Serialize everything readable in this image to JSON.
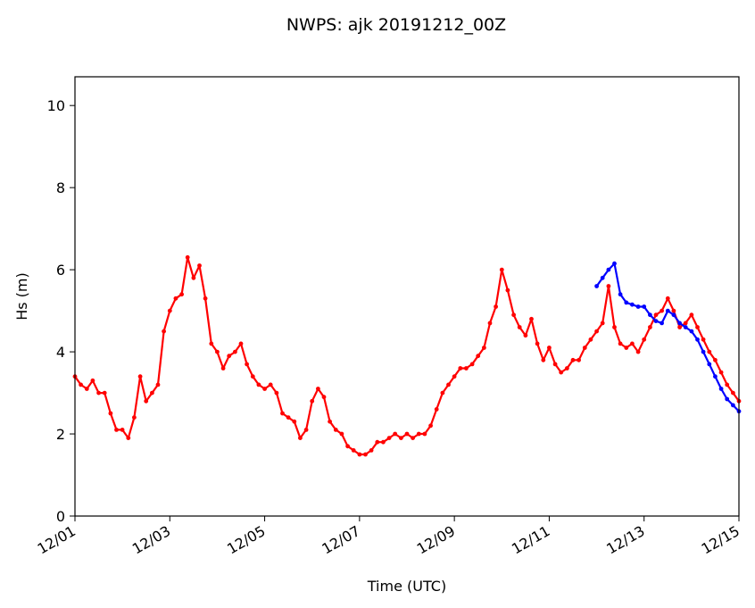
{
  "chart_data": {
    "type": "line",
    "title": "NWPS: ajk 20191212_00Z",
    "xlabel": "Time (UTC)",
    "ylabel": "Hs (m)",
    "xlim": [
      "2019-12-01",
      "2019-12-15"
    ],
    "ylim": [
      0,
      10.7
    ],
    "x_ticks": [
      "12/01",
      "12/03",
      "12/05",
      "12/07",
      "12/09",
      "12/11",
      "12/13",
      "12/15"
    ],
    "y_ticks": [
      "0",
      "2",
      "4",
      "6",
      "8",
      "10"
    ],
    "grid": false,
    "colors": {
      "observed": "#ff0000",
      "forecast": "#0000ff"
    },
    "series": [
      {
        "color": "#ff0000",
        "x": [
          "12/01 00:00",
          "12/01 03:00",
          "12/01 06:00",
          "12/01 09:00",
          "12/01 12:00",
          "12/01 15:00",
          "12/01 18:00",
          "12/01 21:00",
          "12/02 00:00",
          "12/02 03:00",
          "12/02 06:00",
          "12/02 09:00",
          "12/02 12:00",
          "12/02 15:00",
          "12/02 18:00",
          "12/02 21:00",
          "12/03 00:00",
          "12/03 03:00",
          "12/03 06:00",
          "12/03 09:00",
          "12/03 12:00",
          "12/03 15:00",
          "12/03 18:00",
          "12/03 21:00",
          "12/04 00:00",
          "12/04 03:00",
          "12/04 06:00",
          "12/04 09:00",
          "12/04 12:00",
          "12/04 15:00",
          "12/04 18:00",
          "12/04 21:00",
          "12/05 00:00",
          "12/05 03:00",
          "12/05 06:00",
          "12/05 09:00",
          "12/05 12:00",
          "12/05 15:00",
          "12/05 18:00",
          "12/05 21:00",
          "12/06 00:00",
          "12/06 03:00",
          "12/06 06:00",
          "12/06 09:00",
          "12/06 12:00",
          "12/06 15:00",
          "12/06 18:00",
          "12/06 21:00",
          "12/07 00:00",
          "12/07 03:00",
          "12/07 06:00",
          "12/07 09:00",
          "12/07 12:00",
          "12/07 15:00",
          "12/07 18:00",
          "12/07 21:00",
          "12/08 00:00",
          "12/08 03:00",
          "12/08 06:00",
          "12/08 09:00",
          "12/08 12:00",
          "12/08 15:00",
          "12/08 18:00",
          "12/08 21:00",
          "12/09 00:00",
          "12/09 03:00",
          "12/09 06:00",
          "12/09 09:00",
          "12/09 12:00",
          "12/09 15:00",
          "12/09 18:00",
          "12/09 21:00",
          "12/10 00:00",
          "12/10 03:00",
          "12/10 06:00",
          "12/10 09:00",
          "12/10 12:00",
          "12/10 15:00",
          "12/10 18:00",
          "12/10 21:00",
          "12/11 00:00",
          "12/11 03:00",
          "12/11 06:00",
          "12/11 09:00",
          "12/11 12:00",
          "12/11 15:00",
          "12/11 18:00",
          "12/11 21:00",
          "12/12 00:00",
          "12/12 03:00",
          "12/12 06:00",
          "12/12 09:00",
          "12/12 12:00",
          "12/12 15:00",
          "12/12 18:00",
          "12/12 21:00",
          "12/13 00:00",
          "12/13 03:00",
          "12/13 06:00",
          "12/13 09:00",
          "12/13 12:00",
          "12/13 15:00",
          "12/13 18:00",
          "12/13 21:00",
          "12/14 00:00",
          "12/14 03:00",
          "12/14 06:00",
          "12/14 09:00",
          "12/14 12:00",
          "12/14 15:00",
          "12/14 18:00",
          "12/14 21:00",
          "12/15 00:00"
        ],
        "values": [
          3.4,
          3.2,
          3.1,
          3.3,
          3.0,
          3.0,
          2.5,
          2.1,
          2.1,
          1.9,
          2.4,
          3.4,
          2.8,
          3.0,
          3.2,
          4.5,
          5.0,
          5.3,
          5.4,
          6.3,
          5.8,
          6.1,
          5.3,
          4.2,
          4.0,
          3.6,
          3.9,
          4.0,
          4.2,
          3.7,
          3.4,
          3.2,
          3.1,
          3.2,
          3.0,
          2.5,
          2.4,
          2.3,
          1.9,
          2.1,
          2.8,
          3.1,
          2.9,
          2.3,
          2.1,
          2.0,
          1.7,
          1.6,
          1.5,
          1.5,
          1.6,
          1.8,
          1.8,
          1.9,
          2.0,
          1.9,
          2.0,
          1.9,
          2.0,
          2.0,
          2.2,
          2.6,
          3.0,
          3.2,
          3.4,
          3.6,
          3.6,
          3.7,
          3.9,
          4.1,
          4.7,
          5.1,
          6.0,
          5.5,
          4.9,
          4.6,
          4.4,
          4.8,
          4.2,
          3.8,
          4.1,
          3.7,
          3.5,
          3.6,
          3.8,
          3.8,
          4.1,
          4.3,
          4.5,
          4.7,
          5.6,
          4.6,
          4.2,
          4.1,
          4.2,
          4.0,
          4.3,
          4.6,
          4.9,
          5.0,
          5.3,
          5.0,
          4.6,
          4.7,
          4.9,
          4.6,
          4.3,
          4.0,
          3.8,
          3.5,
          3.2,
          3.0,
          2.8
        ]
      },
      {
        "color": "#0000ff",
        "x": [
          "12/12 00:00",
          "12/12 03:00",
          "12/12 06:00",
          "12/12 09:00",
          "12/12 12:00",
          "12/12 15:00",
          "12/12 18:00",
          "12/12 21:00",
          "12/13 00:00",
          "12/13 03:00",
          "12/13 06:00",
          "12/13 09:00",
          "12/13 12:00",
          "12/13 15:00",
          "12/13 18:00",
          "12/13 21:00",
          "12/14 00:00",
          "12/14 03:00",
          "12/14 06:00",
          "12/14 09:00",
          "12/14 12:00",
          "12/14 15:00",
          "12/14 18:00",
          "12/14 21:00",
          "12/15 00:00"
        ],
        "values": [
          5.6,
          5.8,
          6.0,
          6.15,
          5.4,
          5.2,
          5.15,
          5.1,
          5.1,
          4.9,
          4.75,
          4.7,
          5.0,
          4.9,
          4.7,
          4.6,
          4.5,
          4.3,
          4.0,
          3.7,
          3.4,
          3.1,
          2.85,
          2.7,
          2.55
        ]
      }
    ]
  }
}
